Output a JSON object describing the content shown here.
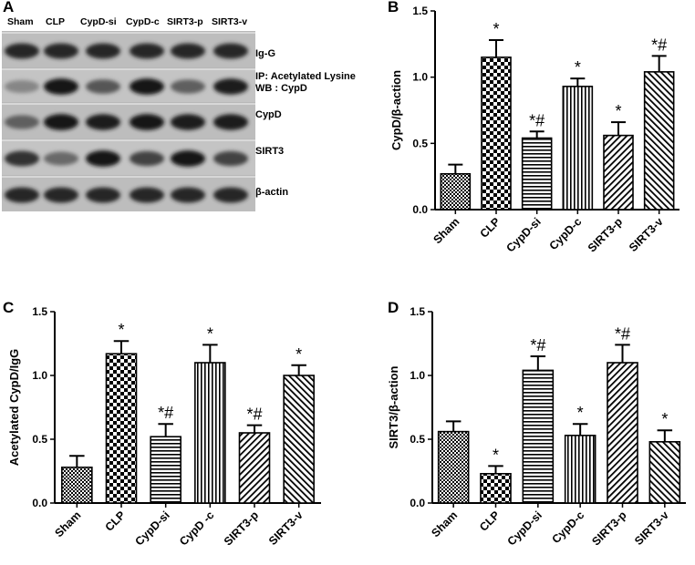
{
  "panels": {
    "A": "A",
    "B": "B",
    "C": "C",
    "D": "D"
  },
  "blot": {
    "lanes": [
      "Sham",
      "CLP",
      "CypD-si",
      "CypD-c",
      "SIRT3-p",
      "SIRT3-v"
    ],
    "rows": [
      {
        "label": "Ig-G",
        "label2": "",
        "intensities": [
          0.85,
          0.85,
          0.85,
          0.85,
          0.85,
          0.85
        ]
      },
      {
        "label": "IP:  Acetylated Lysine",
        "label2": "WB :  CypD",
        "intensities": [
          0.35,
          0.95,
          0.6,
          0.95,
          0.55,
          0.9
        ]
      },
      {
        "label": "CypD",
        "label2": "",
        "intensities": [
          0.55,
          0.95,
          0.9,
          0.95,
          0.9,
          0.9
        ]
      },
      {
        "label": "SIRT3",
        "label2": "",
        "intensities": [
          0.8,
          0.5,
          0.95,
          0.7,
          0.95,
          0.7
        ]
      },
      {
        "label": "β-actin",
        "label2": "",
        "intensities": [
          0.85,
          0.85,
          0.85,
          0.85,
          0.85,
          0.85
        ]
      }
    ]
  },
  "chart_data": [
    {
      "id": "B",
      "type": "bar",
      "categories": [
        "Sham",
        "CLP",
        "CypD-si",
        "CypD-c",
        "SIRT3-p",
        "SIRT3-v"
      ],
      "values": [
        0.27,
        1.15,
        0.54,
        0.93,
        0.56,
        1.04
      ],
      "errors": [
        0.07,
        0.13,
        0.05,
        0.06,
        0.1,
        0.12
      ],
      "annotations": [
        "",
        "*",
        "*#",
        "*",
        "*",
        "*#"
      ],
      "patterns": [
        "dots",
        "checker",
        "hlines",
        "vlines",
        "diag-right",
        "diag-left"
      ],
      "ylabel": "CypD/β-action",
      "ylim": [
        0,
        1.5
      ],
      "yticks": [
        "0.0",
        "0.5",
        "1.0",
        "1.5"
      ]
    },
    {
      "id": "C",
      "type": "bar",
      "categories": [
        "Sham",
        "CLP",
        "CypD-si",
        "CypD -c",
        "SIRT3-p",
        "SIRT3-v"
      ],
      "values": [
        0.28,
        1.17,
        0.52,
        1.1,
        0.55,
        1.0
      ],
      "errors": [
        0.09,
        0.1,
        0.1,
        0.14,
        0.06,
        0.08
      ],
      "annotations": [
        "",
        "*",
        "*#",
        "*",
        "*#",
        "*"
      ],
      "patterns": [
        "dots",
        "checker",
        "hlines",
        "vlines",
        "diag-right",
        "diag-left"
      ],
      "ylabel": "Acetylated CypD/IgG",
      "ylim": [
        0,
        1.5
      ],
      "yticks": [
        "0.0",
        "0.5",
        "1.0",
        "1.5"
      ]
    },
    {
      "id": "D",
      "type": "bar",
      "categories": [
        "Sham",
        "CLP",
        "CypD-si",
        "CypD-c",
        "SIRT3-p",
        "SIRT3-v"
      ],
      "values": [
        0.56,
        0.23,
        1.04,
        0.53,
        1.1,
        0.48
      ],
      "errors": [
        0.08,
        0.06,
        0.11,
        0.09,
        0.14,
        0.09
      ],
      "annotations": [
        "",
        "*",
        "*#",
        "*",
        "*#",
        "*"
      ],
      "patterns": [
        "dots",
        "checker",
        "hlines",
        "vlines",
        "diag-right",
        "diag-left"
      ],
      "ylabel": "SIRT3/β-action",
      "ylim": [
        0,
        1.5
      ],
      "yticks": [
        "0.0",
        "0.5",
        "1.0",
        "1.5"
      ]
    }
  ]
}
